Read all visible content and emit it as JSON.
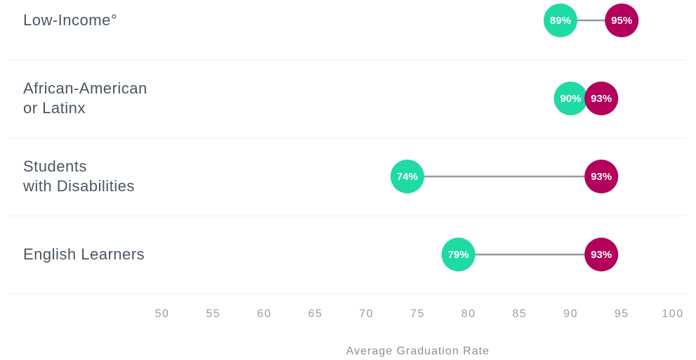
{
  "chart_data": {
    "type": "dumbbell",
    "categories": [
      "Low-Income°",
      "African-American\nor Latinx",
      "Students\nwith Disabilities",
      "English Learners"
    ],
    "series": [
      {
        "color": "#1fdaa5",
        "values": [
          89,
          90,
          74,
          79
        ],
        "value_labels": [
          "89%",
          "90%",
          "74%",
          "79%"
        ]
      },
      {
        "color": "#b3005b",
        "values": [
          95,
          93,
          93,
          93
        ],
        "value_labels": [
          "95%",
          "93%",
          "93%",
          "93%"
        ]
      }
    ],
    "line_color": "#8f9aa1",
    "xlim": [
      50,
      100
    ],
    "xticks": [
      50,
      55,
      60,
      65,
      70,
      75,
      80,
      85,
      90,
      95,
      100
    ],
    "xlabel": "Average Graduation Rate"
  }
}
